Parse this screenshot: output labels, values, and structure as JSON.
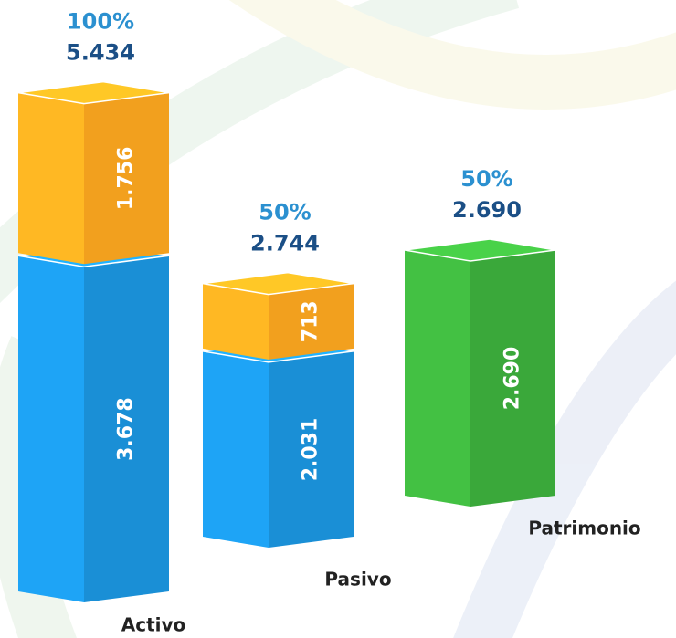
{
  "chart_data": {
    "type": "bar3d",
    "categories": [
      "Activo",
      "Pasivo",
      "Patrimonio"
    ],
    "series": [
      {
        "color": "#1a8fd6",
        "values": [
          3678,
          2031,
          null
        ],
        "value_labels": [
          "3.678",
          "2.031",
          null
        ]
      },
      {
        "color": "#f2a01e",
        "values": [
          1756,
          713,
          null
        ],
        "value_labels": [
          "1.756",
          "713",
          null
        ]
      },
      {
        "color": "#3aa83a",
        "values": [
          null,
          null,
          2690
        ],
        "value_labels": [
          null,
          null,
          "2.690"
        ]
      }
    ],
    "totals": [
      5434,
      2744,
      2690
    ],
    "total_labels": [
      "5.434",
      "2.744",
      "2.690"
    ],
    "shares": [
      100,
      50,
      50
    ],
    "share_labels": [
      "100%",
      "50%",
      "50%"
    ]
  }
}
